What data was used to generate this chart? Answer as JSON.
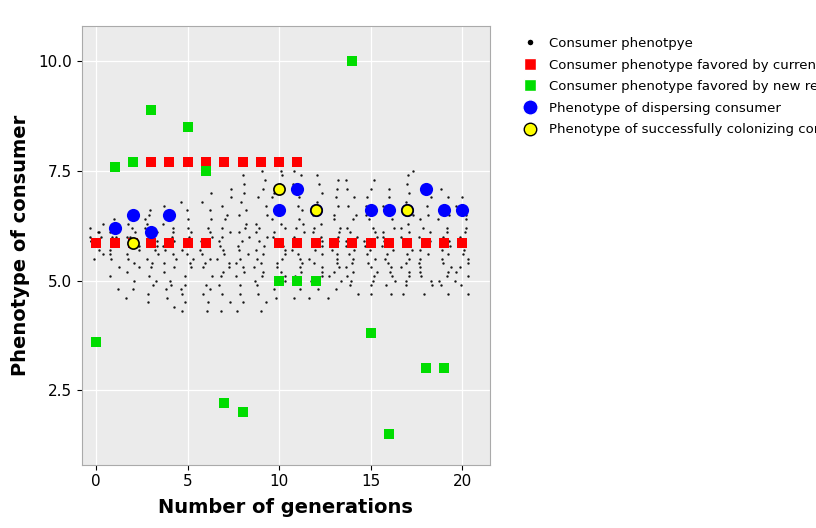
{
  "title": "",
  "xlabel": "Number of generations",
  "ylabel": "Phenotype of consumer",
  "xlim": [
    -0.8,
    21.5
  ],
  "ylim": [
    0.8,
    10.8
  ],
  "yticks": [
    2.5,
    5.0,
    7.5,
    10.0
  ],
  "xticks": [
    0,
    5,
    10,
    15,
    20
  ],
  "bg_color": "#ebebeb",
  "red_squares": [
    [
      3,
      7.7
    ],
    [
      4,
      7.7
    ],
    [
      5,
      7.7
    ],
    [
      6,
      7.7
    ],
    [
      7,
      7.7
    ],
    [
      8,
      7.7
    ],
    [
      9,
      7.7
    ],
    [
      10,
      7.7
    ],
    [
      11,
      7.7
    ],
    [
      0,
      5.85
    ],
    [
      1,
      5.85
    ],
    [
      2,
      5.85
    ],
    [
      3,
      5.85
    ],
    [
      4,
      5.85
    ],
    [
      5,
      5.85
    ],
    [
      6,
      5.85
    ],
    [
      10,
      5.85
    ],
    [
      11,
      5.85
    ],
    [
      12,
      5.85
    ],
    [
      13,
      5.85
    ],
    [
      14,
      5.85
    ],
    [
      15,
      5.85
    ],
    [
      16,
      5.85
    ],
    [
      17,
      5.85
    ],
    [
      18,
      5.85
    ],
    [
      19,
      5.85
    ],
    [
      20,
      5.85
    ]
  ],
  "green_squares": [
    [
      0,
      3.6
    ],
    [
      1,
      7.6
    ],
    [
      2,
      7.7
    ],
    [
      3,
      8.9
    ],
    [
      5,
      8.5
    ],
    [
      6,
      7.5
    ],
    [
      7,
      2.2
    ],
    [
      8,
      2.0
    ],
    [
      10,
      5.0
    ],
    [
      11,
      5.0
    ],
    [
      12,
      5.0
    ],
    [
      14,
      10.0
    ],
    [
      15,
      3.8
    ],
    [
      16,
      1.5
    ],
    [
      18,
      3.0
    ],
    [
      19,
      3.0
    ]
  ],
  "blue_circles": [
    [
      1,
      6.2
    ],
    [
      2,
      6.5
    ],
    [
      3,
      6.1
    ],
    [
      4,
      6.5
    ],
    [
      10,
      6.6
    ],
    [
      11,
      7.1
    ],
    [
      12,
      6.6
    ],
    [
      15,
      6.6
    ],
    [
      16,
      6.6
    ],
    [
      17,
      6.6
    ],
    [
      18,
      7.1
    ],
    [
      19,
      6.6
    ],
    [
      20,
      6.6
    ]
  ],
  "yellow_circles": [
    [
      2,
      5.85
    ],
    [
      10,
      7.1
    ],
    [
      12,
      6.6
    ],
    [
      17,
      6.6
    ]
  ],
  "black_dots_per_gen": {
    "0": [
      5.5,
      5.6,
      5.7,
      5.8,
      5.9,
      5.9,
      6.0,
      6.0,
      6.1,
      6.1,
      6.2,
      6.3
    ],
    "1": [
      5.3,
      5.5,
      5.6,
      5.7,
      5.8,
      5.9,
      5.9,
      6.0,
      6.0,
      6.1,
      6.2,
      6.3,
      6.4,
      4.8,
      5.1
    ],
    "2": [
      4.8,
      5.0,
      5.2,
      5.4,
      5.5,
      5.6,
      5.7,
      5.8,
      5.9,
      6.0,
      6.0,
      6.1,
      6.2,
      6.3,
      6.4,
      4.6,
      5.3
    ],
    "3": [
      4.7,
      4.9,
      5.1,
      5.3,
      5.4,
      5.5,
      5.6,
      5.7,
      5.8,
      5.9,
      6.0,
      6.1,
      6.2,
      6.3,
      6.4,
      6.5,
      6.6,
      4.5,
      5.0
    ],
    "4": [
      4.6,
      4.8,
      5.0,
      5.2,
      5.3,
      5.4,
      5.5,
      5.6,
      5.7,
      5.8,
      5.9,
      6.0,
      6.1,
      6.2,
      6.3,
      6.5,
      6.7,
      4.4,
      4.9
    ],
    "5": [
      4.5,
      4.7,
      4.9,
      5.1,
      5.3,
      5.4,
      5.5,
      5.6,
      5.7,
      5.8,
      5.9,
      6.0,
      6.1,
      6.2,
      6.4,
      6.6,
      6.8,
      4.3,
      4.8
    ],
    "6": [
      4.5,
      4.7,
      4.9,
      5.1,
      5.3,
      5.4,
      5.5,
      5.6,
      5.7,
      5.8,
      5.9,
      6.0,
      6.1,
      6.2,
      6.4,
      6.6,
      6.8,
      7.0,
      4.3,
      4.8
    ],
    "7": [
      4.5,
      4.7,
      4.9,
      5.1,
      5.2,
      5.3,
      5.4,
      5.5,
      5.6,
      5.7,
      5.8,
      5.9,
      6.0,
      6.1,
      6.2,
      6.4,
      6.5,
      6.7,
      6.9,
      7.1,
      4.3
    ],
    "8": [
      4.5,
      4.7,
      4.9,
      5.1,
      5.2,
      5.3,
      5.4,
      5.5,
      5.6,
      5.7,
      5.8,
      5.9,
      6.0,
      6.1,
      6.2,
      6.3,
      6.5,
      6.6,
      6.8,
      7.0,
      7.2,
      7.4,
      4.3
    ],
    "9": [
      4.5,
      4.7,
      4.9,
      5.0,
      5.1,
      5.2,
      5.3,
      5.4,
      5.5,
      5.6,
      5.7,
      5.8,
      5.9,
      6.0,
      6.1,
      6.2,
      6.3,
      6.5,
      6.7,
      6.9,
      7.1,
      7.3,
      7.5,
      4.3
    ],
    "10": [
      4.6,
      4.8,
      5.0,
      5.1,
      5.2,
      5.3,
      5.4,
      5.5,
      5.6,
      5.7,
      5.8,
      5.9,
      6.0,
      6.1,
      6.2,
      6.3,
      6.4,
      6.6,
      6.7,
      6.9,
      7.0,
      7.2,
      7.4,
      7.5
    ],
    "11": [
      4.6,
      4.8,
      5.0,
      5.1,
      5.2,
      5.3,
      5.4,
      5.5,
      5.6,
      5.7,
      5.8,
      5.9,
      6.0,
      6.1,
      6.2,
      6.3,
      6.4,
      6.6,
      6.7,
      6.9,
      7.0,
      7.2,
      7.4,
      7.5
    ],
    "12": [
      4.6,
      4.8,
      5.0,
      5.1,
      5.2,
      5.3,
      5.4,
      5.5,
      5.6,
      5.7,
      5.8,
      5.9,
      6.0,
      6.1,
      6.2,
      6.3,
      6.5,
      6.6,
      6.8,
      7.0,
      7.2,
      7.4
    ],
    "13": [
      4.6,
      4.8,
      5.0,
      5.1,
      5.2,
      5.3,
      5.4,
      5.5,
      5.6,
      5.7,
      5.8,
      5.9,
      6.0,
      6.1,
      6.2,
      6.4,
      6.5,
      6.7,
      6.9,
      7.1,
      7.3
    ],
    "14": [
      4.7,
      4.9,
      5.0,
      5.1,
      5.2,
      5.3,
      5.4,
      5.5,
      5.6,
      5.7,
      5.8,
      5.9,
      6.0,
      6.1,
      6.2,
      6.4,
      6.5,
      6.7,
      6.9,
      7.1,
      7.3
    ],
    "15": [
      4.7,
      4.9,
      5.0,
      5.1,
      5.2,
      5.3,
      5.4,
      5.5,
      5.6,
      5.7,
      5.8,
      5.9,
      6.0,
      6.1,
      6.2,
      6.4,
      6.5,
      6.7,
      6.9,
      7.1,
      7.3
    ],
    "16": [
      4.7,
      4.9,
      5.0,
      5.1,
      5.2,
      5.3,
      5.4,
      5.5,
      5.6,
      5.7,
      5.8,
      5.9,
      6.0,
      6.1,
      6.2,
      6.4,
      6.5,
      6.7,
      6.9,
      7.1
    ],
    "17": [
      4.7,
      4.9,
      5.0,
      5.1,
      5.2,
      5.3,
      5.4,
      5.5,
      5.6,
      5.7,
      5.8,
      5.9,
      6.0,
      6.1,
      6.2,
      6.3,
      6.5,
      6.6,
      6.8,
      7.0,
      7.2,
      7.4,
      7.5
    ],
    "18": [
      4.7,
      4.9,
      5.0,
      5.1,
      5.2,
      5.3,
      5.4,
      5.5,
      5.6,
      5.7,
      5.8,
      5.9,
      6.0,
      6.1,
      6.2,
      6.4,
      6.5,
      6.7,
      6.9,
      7.1
    ],
    "19": [
      4.7,
      4.9,
      5.0,
      5.1,
      5.2,
      5.3,
      5.4,
      5.5,
      5.6,
      5.7,
      5.8,
      5.9,
      6.0,
      6.1,
      6.2,
      6.4,
      6.5,
      6.7,
      6.9,
      7.1
    ],
    "20": [
      4.7,
      4.9,
      5.0,
      5.1,
      5.2,
      5.3,
      5.4,
      5.5,
      5.6,
      5.7,
      5.8,
      5.9,
      6.0,
      6.1,
      6.2,
      6.4,
      6.5,
      6.7,
      6.9
    ]
  }
}
